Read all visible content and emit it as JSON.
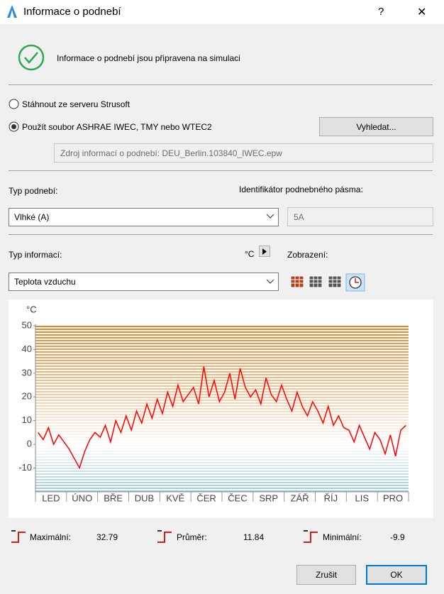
{
  "title": "Informace o podnebí",
  "help": "?",
  "close": "✕",
  "status": "Informace o podnebí jsou připravena na simulaci",
  "source_options": [
    "Stáhnout ze serveru Strusoft",
    "Použít soubor ASHRAE IWEC, TMY nebo WTEC2"
  ],
  "browse_button": "Vyhledat...",
  "source_file": "Zdroj informací o podnebí: DEU_Berlin.103840_IWEC.epw",
  "climate_type_label": "Typ podnebí:",
  "climate_type": "Vlhké (A)",
  "zone_id_label": "Identifikátor podnebného pásma:",
  "zone_id": "5A",
  "info_type_label": "Typ informací:",
  "unit": "°C",
  "display_label": "Zobrazení:",
  "info_type": "Teplota vzduchu",
  "chart_data": {
    "type": "line",
    "y_label": "°C",
    "months": [
      "LED",
      "ÚNO",
      "BŘE",
      "DUB",
      "KVĚ",
      "ČER",
      "ČEC",
      "SRP",
      "ZÁŘ",
      "ŘÍJ",
      "LIS",
      "PRO"
    ],
    "series": [
      {
        "name": "Teplota vzduchu",
        "color": "#ff0000",
        "values": [
          5,
          2,
          7,
          0,
          4,
          1,
          -2,
          -6,
          -9.9,
          -3,
          2,
          5,
          3,
          8,
          1,
          10,
          5,
          12,
          6,
          14,
          9,
          17,
          11,
          19,
          13,
          22,
          16,
          25,
          18,
          21,
          24,
          17,
          32.79,
          20,
          27,
          18,
          22,
          30,
          19,
          32,
          24,
          20,
          23,
          17,
          28,
          21,
          18,
          25,
          19,
          14,
          22,
          16,
          12,
          18,
          14,
          9,
          16,
          8,
          12,
          7,
          6,
          1,
          8,
          3,
          -2,
          5,
          2,
          -4,
          4,
          -5,
          6,
          8
        ]
      }
    ],
    "ylim": [
      -20,
      50
    ],
    "yticks": [
      -10,
      0,
      10,
      20,
      30,
      40,
      50
    ]
  },
  "stats": [
    {
      "label": "Maximální:",
      "value": 32.79
    },
    {
      "label": "Průměr:",
      "value": 11.84
    },
    {
      "label": "Minimální:",
      "value": -9.9
    }
  ],
  "cancel_button": "Zrušit",
  "ok_button": "OK"
}
